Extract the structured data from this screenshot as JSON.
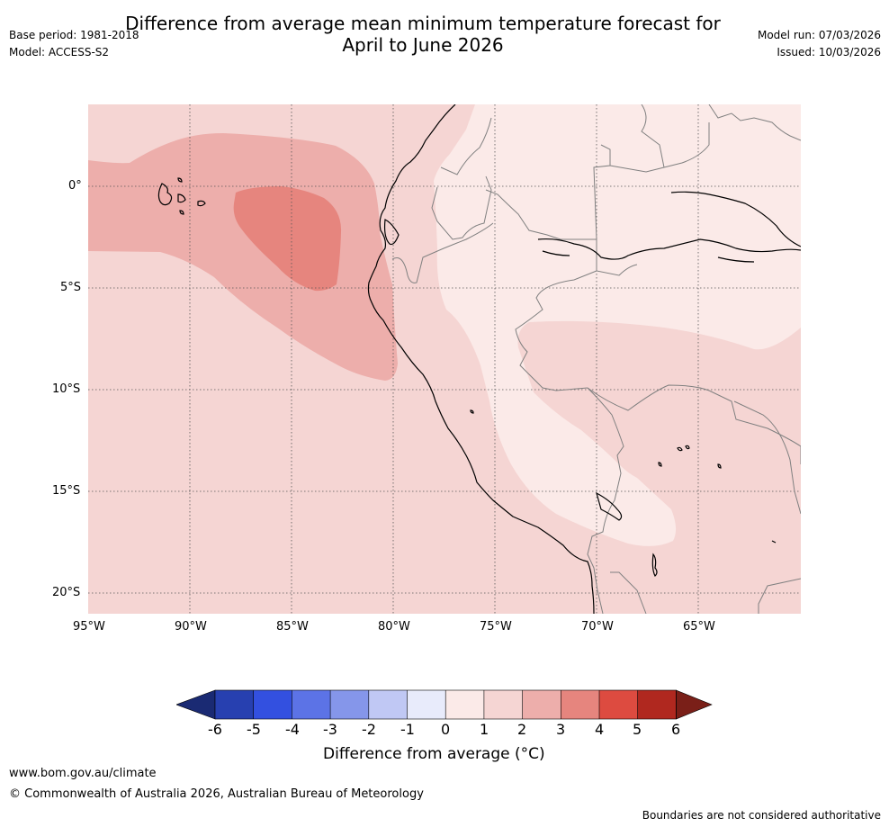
{
  "header": {
    "base_period": "Base period: 1981-2018",
    "model": "Model: ACCESS-S2",
    "title_line1": "Difference from average mean minimum temperature forecast for",
    "title_line2": "April to June 2026",
    "model_run": "Model run: 07/03/2026",
    "issued": "Issued: 10/03/2026"
  },
  "map": {
    "lat_labels": [
      "0°",
      "5°S",
      "10°S",
      "15°S",
      "20°S"
    ],
    "lon_labels": [
      "95°W",
      "90°W",
      "85°W",
      "80°W",
      "75°W",
      "70°W",
      "65°W"
    ],
    "colors": {
      "c01": "#fbeae8",
      "c12": "#f5d5d3",
      "c23": "#edaeab",
      "c34": "#e6857e",
      "coast": "#000000",
      "border": "#808080",
      "grid": "#555555"
    }
  },
  "colorbar": {
    "label": "Difference from average (°C)",
    "ticks": [
      "-6",
      "-5",
      "-4",
      "-3",
      "-2",
      "-1",
      "0",
      "1",
      "2",
      "3",
      "4",
      "5",
      "6"
    ],
    "colors": [
      "#1a2a73",
      "#2740b0",
      "#3350e0",
      "#5c73e6",
      "#8596ea",
      "#c0c8f4",
      "#e8ebfb",
      "#fbeae8",
      "#f5d5d3",
      "#edaeab",
      "#e6857e",
      "#dd4b40",
      "#b0281f",
      "#7a1f18"
    ]
  },
  "footer": {
    "url": "www.bom.gov.au/climate",
    "copyright": "© Commonwealth of Australia 2026, Australian Bureau of Meteorology",
    "disclaimer": "Boundaries are not considered authoritative"
  }
}
